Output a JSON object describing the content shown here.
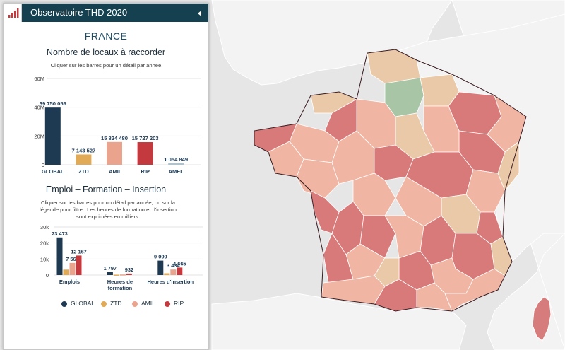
{
  "panel": {
    "title": "Observatoire THD 2020",
    "country": "FRANCE"
  },
  "locaux": {
    "title": "Nombre de locaux à raccorder",
    "hint": "Cliquer sur les barres pour un détail par année."
  },
  "emploi": {
    "title": "Emploi – Formation – Insertion",
    "hint": "Cliquer sur les barres pour un détail par année, ou sur la légende pour filtrer. Les heures de formation et d'insertion sont exprimées en milliers."
  },
  "legend": [
    {
      "label": "GLOBAL",
      "color": "#1d3a52"
    },
    {
      "label": "ZTD",
      "color": "#e0aa56"
    },
    {
      "label": "AMII",
      "color": "#eaa48e"
    },
    {
      "label": "RIP",
      "color": "#c4393d"
    }
  ],
  "colors": {
    "header": "#14404f",
    "sea": "#e9e9e9",
    "land": "#f2f2f2",
    "border": "#ffffff",
    "region_border": "#3a1a20"
  },
  "chart_data": [
    {
      "type": "bar",
      "title": "Nombre de locaux à raccorder",
      "categories": [
        "GLOBAL",
        "ZTD",
        "AMII",
        "RIP",
        "AMEL"
      ],
      "values": [
        39750059,
        7143527,
        15824480,
        15727203,
        1054849
      ],
      "value_labels": [
        "39 750 059",
        "7 143 527",
        "15 824 480",
        "15 727 203",
        "1 054 849"
      ],
      "colors": [
        "#1d3a52",
        "#e0aa56",
        "#eaa48e",
        "#c4393d",
        "#a9c5d3"
      ],
      "ylim": [
        0,
        60000000
      ],
      "yticks": [
        0,
        20000000,
        40000000,
        60000000
      ],
      "ytick_labels": [
        "0",
        "20M",
        "40M",
        "60M"
      ],
      "grid": true
    },
    {
      "type": "bar",
      "title": "Emploi – Formation – Insertion",
      "categories": [
        "Emplois",
        "Heures de formation",
        "Heures d'insertion"
      ],
      "series": [
        {
          "name": "GLOBAL",
          "values": [
            23473,
            1797,
            9000
          ],
          "labels": [
            "23 473",
            "1 797",
            "9 000"
          ]
        },
        {
          "name": "ZTD",
          "values": [
            3400,
            250,
            1100
          ],
          "labels": [
            "",
            "",
            ""
          ]
        },
        {
          "name": "AMII",
          "values": [
            7564,
            350,
            3434
          ],
          "labels": [
            "7 564",
            "",
            "3 434"
          ]
        },
        {
          "name": "RIP",
          "values": [
            12167,
            932,
            4665
          ],
          "labels": [
            "12 167",
            "932",
            "4 665"
          ]
        }
      ],
      "ylim": [
        0,
        30000
      ],
      "yticks": [
        0,
        10000,
        20000,
        30000
      ],
      "ytick_labels": [
        "0",
        "10k",
        "20k",
        "30k"
      ],
      "grid": true
    }
  ]
}
